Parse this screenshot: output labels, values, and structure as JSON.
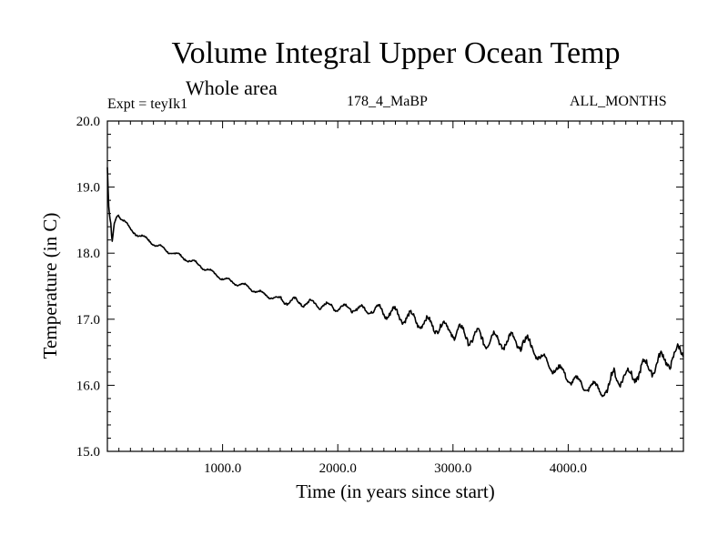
{
  "chart_data": {
    "type": "line",
    "title": "Volume Integral Upper Ocean Temp",
    "subtitle": "Whole area",
    "annotations": {
      "left": "Expt = teyIk1",
      "center": "178_4_MaBP",
      "right": "ALL_MONTHS"
    },
    "xlabel": "Time (in years since start)",
    "ylabel": "Temperature (in C)",
    "xlim": [
      0,
      5000
    ],
    "ylim": [
      15.0,
      20.0
    ],
    "xticks": [
      1000,
      2000,
      3000,
      4000
    ],
    "xtick_labels": [
      "1000.0",
      "2000.0",
      "3000.0",
      "4000.0"
    ],
    "yticks": [
      15,
      16,
      17,
      18,
      19,
      20
    ],
    "ytick_labels": [
      "15.0",
      "16.0",
      "17.0",
      "18.0",
      "19.0",
      "20.0"
    ],
    "series": [
      {
        "name": "teyIk1",
        "x": [
          0,
          10,
          20,
          30,
          40,
          60,
          80,
          100,
          150,
          200,
          300,
          400,
          500,
          600,
          700,
          800,
          900,
          1000,
          1100,
          1200,
          1300,
          1400,
          1500,
          1600,
          1700,
          1800,
          1900,
          2000,
          2100,
          2200,
          2300,
          2400,
          2500,
          2600,
          2700,
          2800,
          2900,
          3000,
          3100,
          3200,
          3300,
          3400,
          3500,
          3600,
          3700,
          3800,
          3900,
          4000,
          4100,
          4200,
          4300,
          4350,
          4400,
          4500,
          4600,
          4700,
          4800,
          4900,
          5000
        ],
        "values": [
          19.3,
          18.75,
          18.55,
          18.45,
          18.15,
          18.45,
          18.55,
          18.58,
          18.48,
          18.35,
          18.25,
          18.15,
          18.05,
          17.98,
          17.9,
          17.82,
          17.72,
          17.62,
          17.55,
          17.5,
          17.42,
          17.35,
          17.3,
          17.27,
          17.25,
          17.23,
          17.2,
          17.18,
          17.17,
          17.15,
          17.14,
          17.12,
          17.08,
          17.03,
          16.97,
          16.92,
          16.88,
          16.83,
          16.76,
          16.72,
          16.7,
          16.68,
          16.66,
          16.66,
          16.55,
          16.35,
          16.25,
          16.12,
          16.02,
          15.97,
          15.93,
          15.9,
          16.18,
          16.1,
          16.2,
          16.28,
          16.35,
          16.42,
          16.5
        ]
      }
    ]
  }
}
